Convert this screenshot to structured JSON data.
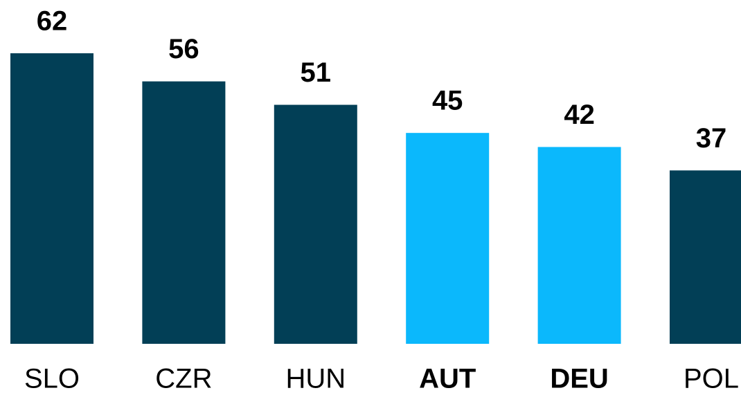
{
  "chart_data": {
    "type": "bar",
    "categories": [
      "SLO",
      "CZR",
      "HUN",
      "AUT",
      "DEU",
      "POL"
    ],
    "values": [
      62,
      56,
      51,
      45,
      42,
      37
    ],
    "colors": [
      "#023f56",
      "#023f56",
      "#023f56",
      "#0bb8fc",
      "#0bb8fc",
      "#023f56"
    ],
    "bold_categories": [
      false,
      false,
      false,
      true,
      true,
      false
    ],
    "ylim": [
      0,
      62
    ]
  }
}
